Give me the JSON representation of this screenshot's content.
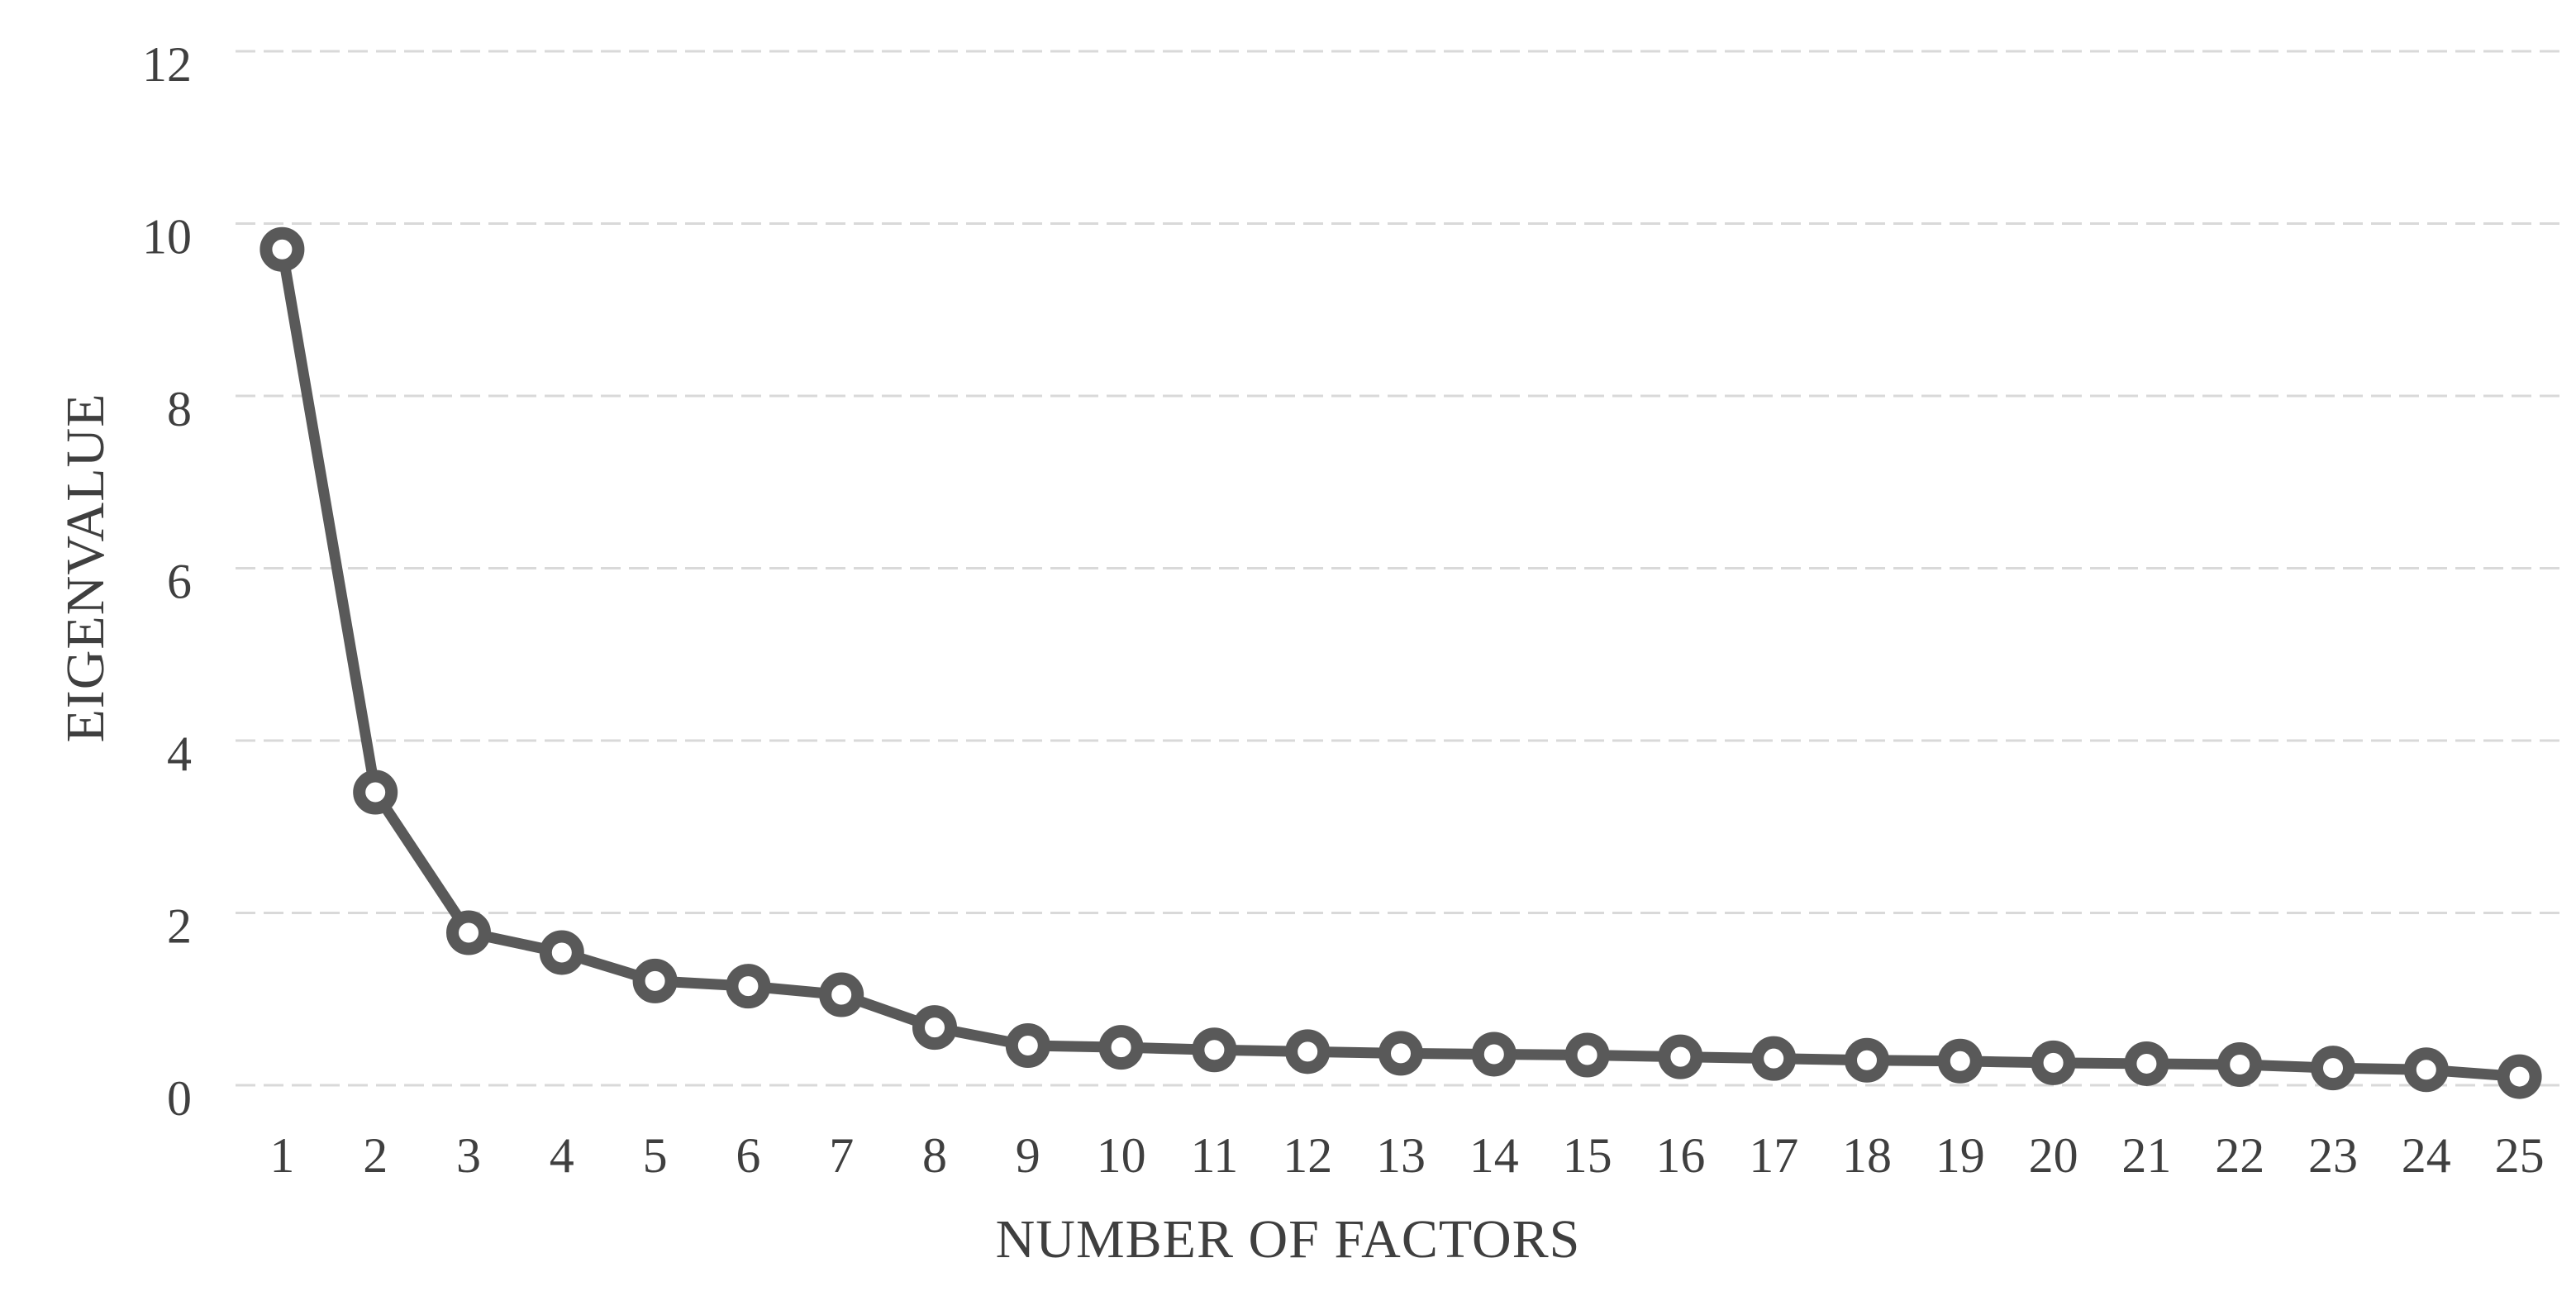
{
  "chart_data": {
    "type": "line",
    "title": "",
    "xlabel": "NUMBER OF FACTORS",
    "ylabel": "EIGENVALUE",
    "categories": [
      1,
      2,
      3,
      4,
      5,
      6,
      7,
      8,
      9,
      10,
      11,
      12,
      13,
      14,
      15,
      16,
      17,
      18,
      19,
      20,
      21,
      22,
      23,
      24,
      25
    ],
    "values": [
      9.7,
      3.4,
      1.77,
      1.54,
      1.21,
      1.15,
      1.05,
      0.67,
      0.46,
      0.44,
      0.41,
      0.39,
      0.37,
      0.36,
      0.35,
      0.33,
      0.31,
      0.29,
      0.28,
      0.26,
      0.25,
      0.24,
      0.2,
      0.18,
      0.1
    ],
    "ylim": [
      0,
      12
    ],
    "yticks": [
      0,
      2,
      4,
      6,
      8,
      10,
      12
    ],
    "grid": true,
    "gridline_style": "dashed",
    "legend": false,
    "marker": "open-circle",
    "colors": {
      "series": "#595959",
      "marker_fill": "#ffffff",
      "grid": "#d9d9d9",
      "text": "#3f3f3f",
      "background": "#ffffff"
    }
  }
}
